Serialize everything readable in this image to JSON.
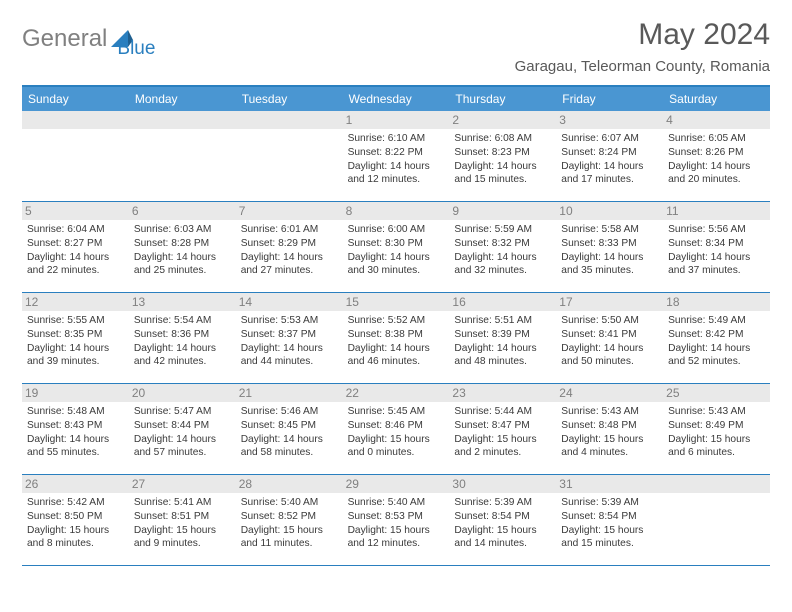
{
  "brand": {
    "text1": "General",
    "text2": "Blue"
  },
  "title": "May 2024",
  "location": "Garagau, Teleorman County, Romania",
  "colors": {
    "header_bg": "#4a96d2",
    "rule": "#2a7fbf",
    "daynum_bg": "#e9e9e9",
    "text": "#3a3a3a",
    "muted": "#808080"
  },
  "weekdays": [
    "Sunday",
    "Monday",
    "Tuesday",
    "Wednesday",
    "Thursday",
    "Friday",
    "Saturday"
  ],
  "weeks": [
    [
      null,
      null,
      null,
      {
        "n": "1",
        "sr": "6:10 AM",
        "ss": "8:22 PM",
        "dl": "14 hours and 12 minutes."
      },
      {
        "n": "2",
        "sr": "6:08 AM",
        "ss": "8:23 PM",
        "dl": "14 hours and 15 minutes."
      },
      {
        "n": "3",
        "sr": "6:07 AM",
        "ss": "8:24 PM",
        "dl": "14 hours and 17 minutes."
      },
      {
        "n": "4",
        "sr": "6:05 AM",
        "ss": "8:26 PM",
        "dl": "14 hours and 20 minutes."
      }
    ],
    [
      {
        "n": "5",
        "sr": "6:04 AM",
        "ss": "8:27 PM",
        "dl": "14 hours and 22 minutes."
      },
      {
        "n": "6",
        "sr": "6:03 AM",
        "ss": "8:28 PM",
        "dl": "14 hours and 25 minutes."
      },
      {
        "n": "7",
        "sr": "6:01 AM",
        "ss": "8:29 PM",
        "dl": "14 hours and 27 minutes."
      },
      {
        "n": "8",
        "sr": "6:00 AM",
        "ss": "8:30 PM",
        "dl": "14 hours and 30 minutes."
      },
      {
        "n": "9",
        "sr": "5:59 AM",
        "ss": "8:32 PM",
        "dl": "14 hours and 32 minutes."
      },
      {
        "n": "10",
        "sr": "5:58 AM",
        "ss": "8:33 PM",
        "dl": "14 hours and 35 minutes."
      },
      {
        "n": "11",
        "sr": "5:56 AM",
        "ss": "8:34 PM",
        "dl": "14 hours and 37 minutes."
      }
    ],
    [
      {
        "n": "12",
        "sr": "5:55 AM",
        "ss": "8:35 PM",
        "dl": "14 hours and 39 minutes."
      },
      {
        "n": "13",
        "sr": "5:54 AM",
        "ss": "8:36 PM",
        "dl": "14 hours and 42 minutes."
      },
      {
        "n": "14",
        "sr": "5:53 AM",
        "ss": "8:37 PM",
        "dl": "14 hours and 44 minutes."
      },
      {
        "n": "15",
        "sr": "5:52 AM",
        "ss": "8:38 PM",
        "dl": "14 hours and 46 minutes."
      },
      {
        "n": "16",
        "sr": "5:51 AM",
        "ss": "8:39 PM",
        "dl": "14 hours and 48 minutes."
      },
      {
        "n": "17",
        "sr": "5:50 AM",
        "ss": "8:41 PM",
        "dl": "14 hours and 50 minutes."
      },
      {
        "n": "18",
        "sr": "5:49 AM",
        "ss": "8:42 PM",
        "dl": "14 hours and 52 minutes."
      }
    ],
    [
      {
        "n": "19",
        "sr": "5:48 AM",
        "ss": "8:43 PM",
        "dl": "14 hours and 55 minutes."
      },
      {
        "n": "20",
        "sr": "5:47 AM",
        "ss": "8:44 PM",
        "dl": "14 hours and 57 minutes."
      },
      {
        "n": "21",
        "sr": "5:46 AM",
        "ss": "8:45 PM",
        "dl": "14 hours and 58 minutes."
      },
      {
        "n": "22",
        "sr": "5:45 AM",
        "ss": "8:46 PM",
        "dl": "15 hours and 0 minutes."
      },
      {
        "n": "23",
        "sr": "5:44 AM",
        "ss": "8:47 PM",
        "dl": "15 hours and 2 minutes."
      },
      {
        "n": "24",
        "sr": "5:43 AM",
        "ss": "8:48 PM",
        "dl": "15 hours and 4 minutes."
      },
      {
        "n": "25",
        "sr": "5:43 AM",
        "ss": "8:49 PM",
        "dl": "15 hours and 6 minutes."
      }
    ],
    [
      {
        "n": "26",
        "sr": "5:42 AM",
        "ss": "8:50 PM",
        "dl": "15 hours and 8 minutes."
      },
      {
        "n": "27",
        "sr": "5:41 AM",
        "ss": "8:51 PM",
        "dl": "15 hours and 9 minutes."
      },
      {
        "n": "28",
        "sr": "5:40 AM",
        "ss": "8:52 PM",
        "dl": "15 hours and 11 minutes."
      },
      {
        "n": "29",
        "sr": "5:40 AM",
        "ss": "8:53 PM",
        "dl": "15 hours and 12 minutes."
      },
      {
        "n": "30",
        "sr": "5:39 AM",
        "ss": "8:54 PM",
        "dl": "15 hours and 14 minutes."
      },
      {
        "n": "31",
        "sr": "5:39 AM",
        "ss": "8:54 PM",
        "dl": "15 hours and 15 minutes."
      },
      null
    ]
  ],
  "labels": {
    "sunrise": "Sunrise: ",
    "sunset": "Sunset: ",
    "daylight": "Daylight: "
  }
}
